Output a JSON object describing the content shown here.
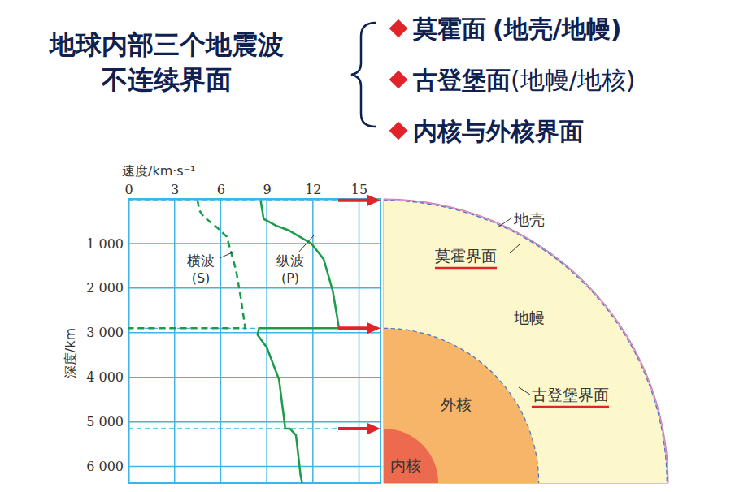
{
  "header": {
    "title_lines": [
      "地球内部三个地震波",
      "不连续界面"
    ],
    "items": [
      {
        "name": "莫霍面",
        "note": "(地壳/地幔)"
      },
      {
        "name": "古登堡面",
        "note": "(地幔/地核)"
      },
      {
        "name": "内核与外核界面"
      }
    ]
  },
  "chart_data": {
    "type": "line",
    "x_label": "速度/km·s⁻¹",
    "y_label": "深度/km",
    "xlim": [
      0,
      16.4
    ],
    "xticks": [
      0,
      3,
      6,
      9,
      12,
      15
    ],
    "ylim": [
      0,
      6371
    ],
    "yticks": [
      {
        "value": 1000,
        "label": "1 000"
      },
      {
        "value": 2000,
        "label": "2 000"
      },
      {
        "value": 3000,
        "label": "3 000"
      },
      {
        "value": 4000,
        "label": "4 000"
      },
      {
        "value": 5000,
        "label": "5 000"
      },
      {
        "value": 6000,
        "label": "6 000"
      }
    ],
    "grid": true,
    "boundary_depths": [
      33,
      2900,
      5150
    ],
    "series": [
      {
        "name": "横波",
        "symbol": "(S)",
        "color": "#1a9c4a",
        "line_style": "dashed",
        "x": [
          4.5,
          4.6,
          4.9,
          5.8,
          6.4,
          6.6,
          7.0,
          7.3,
          7.6,
          0
        ],
        "values": [
          33,
          250,
          400,
          650,
          850,
          1100,
          1600,
          2200,
          2900,
          2900
        ]
      },
      {
        "name": "纵波",
        "symbol": "(P)",
        "color": "#1a9c4a",
        "line_style": "solid",
        "x": [
          8.6,
          8.8,
          9.6,
          10.4,
          11.9,
          12.7,
          13.3,
          13.7,
          8.5,
          8.4,
          9.0,
          9.8,
          10.0,
          10.1,
          10.2,
          10.5,
          10.9,
          11.2,
          11.3
        ],
        "values": [
          33,
          450,
          600,
          700,
          1000,
          1350,
          2070,
          2900,
          2900,
          3050,
          3330,
          4050,
          4600,
          4860,
          5150,
          5150,
          5300,
          6200,
          6371
        ]
      }
    ]
  },
  "diagram": {
    "layers": [
      {
        "label": "地壳",
        "color": "#e9a3cf"
      },
      {
        "label": "地幔",
        "color": "#fdf8cc"
      },
      {
        "label": "外核",
        "color": "#f7b56a"
      },
      {
        "label": "内核",
        "color": "#ec6a4e"
      }
    ],
    "boundaries": [
      {
        "label": "莫霍界面"
      },
      {
        "label": "古登堡界面"
      }
    ]
  }
}
